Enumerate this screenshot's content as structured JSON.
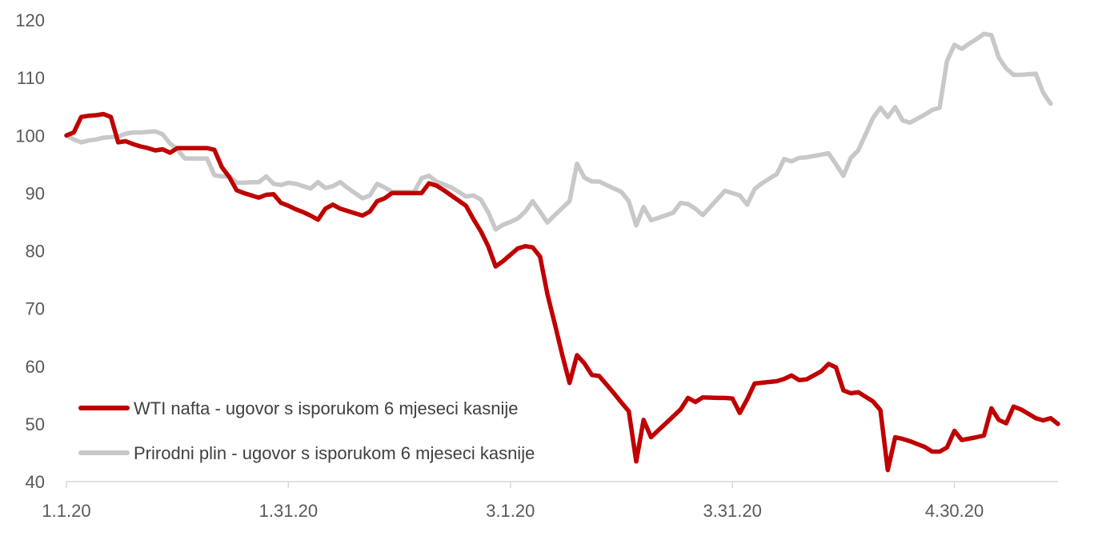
{
  "chart_data": {
    "type": "line",
    "ylim": [
      40,
      120
    ],
    "yticks": [
      40,
      50,
      60,
      70,
      80,
      90,
      100,
      110,
      120
    ],
    "xlim": [
      0,
      134
    ],
    "xticks": [
      {
        "x": 0,
        "label": "1.1.20"
      },
      {
        "x": 30,
        "label": "1.31.20"
      },
      {
        "x": 60,
        "label": "3.1.20"
      },
      {
        "x": 90,
        "label": "3.31.20"
      },
      {
        "x": 120,
        "label": "4.30.20"
      }
    ],
    "legend_position": "bottom-left",
    "grid": false,
    "series": [
      {
        "name": "WTI nafta - ugovor s isporukom 6 mjeseci kasnije",
        "color": "#C00000",
        "points": [
          [
            0,
            100
          ],
          [
            1,
            100.5
          ],
          [
            2,
            103.2
          ],
          [
            3,
            103.4
          ],
          [
            4,
            103.5
          ],
          [
            5,
            103.7
          ],
          [
            6,
            103.2
          ],
          [
            7,
            98.8
          ],
          [
            8,
            99
          ],
          [
            9,
            98.5
          ],
          [
            10,
            98.1
          ],
          [
            11,
            97.8
          ],
          [
            12,
            97.4
          ],
          [
            13,
            97.6
          ],
          [
            14,
            97
          ],
          [
            15,
            97.8
          ],
          [
            16,
            97.8
          ],
          [
            17,
            97.8
          ],
          [
            18,
            97.8
          ],
          [
            19,
            97.8
          ],
          [
            20,
            97.5
          ],
          [
            21,
            94.5
          ],
          [
            22,
            92.8
          ],
          [
            23,
            90.5
          ],
          [
            24,
            90
          ],
          [
            25,
            89.6
          ],
          [
            26,
            89.2
          ],
          [
            27,
            89.7
          ],
          [
            28,
            89.8
          ],
          [
            29,
            88.3
          ],
          [
            30,
            87.8
          ],
          [
            31,
            87.2
          ],
          [
            32,
            86.7
          ],
          [
            33,
            86.1
          ],
          [
            34,
            85.4
          ],
          [
            35,
            87.3
          ],
          [
            36,
            88
          ],
          [
            37,
            87.3
          ],
          [
            38,
            86.9
          ],
          [
            39,
            86.5
          ],
          [
            40,
            86.1
          ],
          [
            41,
            86.8
          ],
          [
            42,
            88.6
          ],
          [
            43,
            89.1
          ],
          [
            44,
            90
          ],
          [
            45,
            90
          ],
          [
            46,
            90
          ],
          [
            47,
            90
          ],
          [
            48,
            90
          ],
          [
            49,
            91.7
          ],
          [
            50,
            91.3
          ],
          [
            51,
            90.5
          ],
          [
            52,
            89.6
          ],
          [
            53,
            88.7
          ],
          [
            54,
            87.8
          ],
          [
            55,
            85.5
          ],
          [
            56,
            83.4
          ],
          [
            57,
            80.8
          ],
          [
            58,
            77.3
          ],
          [
            59,
            78.2
          ],
          [
            60,
            79.3
          ],
          [
            61,
            80.4
          ],
          [
            62,
            80.8
          ],
          [
            63,
            80.6
          ],
          [
            64,
            79
          ],
          [
            65,
            72.5
          ],
          [
            66,
            67.3
          ],
          [
            67,
            62
          ],
          [
            68,
            57.1
          ],
          [
            69,
            61.9
          ],
          [
            70,
            60.5
          ],
          [
            71,
            58.5
          ],
          [
            72,
            58.3
          ],
          [
            73,
            56.8
          ],
          [
            74,
            55.3
          ],
          [
            75,
            53.7
          ],
          [
            76,
            52.2
          ],
          [
            77,
            43.5
          ],
          [
            78,
            50.7
          ],
          [
            79,
            47.7
          ],
          [
            80,
            48.9
          ],
          [
            81,
            50.1
          ],
          [
            82,
            51.3
          ],
          [
            83,
            52.5
          ],
          [
            84,
            54.5
          ],
          [
            85,
            53.8
          ],
          [
            86,
            54.6
          ],
          [
            88,
            54.5
          ],
          [
            89,
            54.5
          ],
          [
            90,
            54.4
          ],
          [
            91,
            51.9
          ],
          [
            92,
            54.3
          ],
          [
            93,
            57
          ],
          [
            96,
            57.4
          ],
          [
            97,
            57.8
          ],
          [
            98,
            58.4
          ],
          [
            99,
            57.6
          ],
          [
            100,
            57.7
          ],
          [
            102,
            59.1
          ],
          [
            103,
            60.4
          ],
          [
            104,
            59.8
          ],
          [
            105,
            55.8
          ],
          [
            106,
            55.3
          ],
          [
            107,
            55.5
          ],
          [
            109,
            53.9
          ],
          [
            110,
            52.4
          ],
          [
            111,
            42
          ],
          [
            112,
            47.7
          ],
          [
            113,
            47.4
          ],
          [
            114,
            47
          ],
          [
            116,
            46
          ],
          [
            117,
            45.2
          ],
          [
            118,
            45.2
          ],
          [
            119,
            45.9
          ],
          [
            120,
            48.8
          ],
          [
            121,
            47.2
          ],
          [
            123,
            47.7
          ],
          [
            124,
            48
          ],
          [
            125,
            52.7
          ],
          [
            126,
            50.7
          ],
          [
            127,
            50.1
          ],
          [
            128,
            53
          ],
          [
            129,
            52.5
          ],
          [
            131,
            51
          ],
          [
            132,
            50.6
          ],
          [
            133,
            51
          ],
          [
            134,
            50
          ]
        ]
      },
      {
        "name": "Prirodni plin - ugovor s isporukom 6 mjeseci kasnije",
        "color": "#C8C8C8",
        "points": [
          [
            0,
            100
          ],
          [
            1,
            99.3
          ],
          [
            2,
            98.8
          ],
          [
            3,
            99.1
          ],
          [
            4,
            99.3
          ],
          [
            5,
            99.6
          ],
          [
            6,
            99.7
          ],
          [
            7,
            99.8
          ],
          [
            8,
            100.3
          ],
          [
            9,
            100.5
          ],
          [
            10,
            100.5
          ],
          [
            11,
            100.6
          ],
          [
            12,
            100.7
          ],
          [
            13,
            100.2
          ],
          [
            14,
            98.6
          ],
          [
            15,
            97.6
          ],
          [
            16,
            96
          ],
          [
            17,
            96
          ],
          [
            18,
            96
          ],
          [
            19,
            96
          ],
          [
            20,
            93.1
          ],
          [
            21,
            92.9
          ],
          [
            22,
            92.9
          ],
          [
            23,
            91.8
          ],
          [
            24,
            91.8
          ],
          [
            25,
            91.9
          ],
          [
            26,
            91.9
          ],
          [
            27,
            92.9
          ],
          [
            28,
            91.6
          ],
          [
            29,
            91.4
          ],
          [
            30,
            91.8
          ],
          [
            31,
            91.6
          ],
          [
            32,
            91.2
          ],
          [
            33,
            90.8
          ],
          [
            34,
            91.9
          ],
          [
            35,
            90.9
          ],
          [
            36,
            91.2
          ],
          [
            37,
            91.9
          ],
          [
            38,
            90.9
          ],
          [
            39,
            90
          ],
          [
            40,
            89.1
          ],
          [
            41,
            89.6
          ],
          [
            42,
            91.6
          ],
          [
            43,
            91
          ],
          [
            44,
            90.2
          ],
          [
            45,
            90.2
          ],
          [
            46,
            90.2
          ],
          [
            47,
            90.2
          ],
          [
            48,
            92.6
          ],
          [
            49,
            93
          ],
          [
            50,
            92
          ],
          [
            51,
            91.5
          ],
          [
            52,
            91
          ],
          [
            53,
            90.2
          ],
          [
            54,
            89.4
          ],
          [
            55,
            89.6
          ],
          [
            56,
            88.9
          ],
          [
            57,
            86.7
          ],
          [
            58,
            83.7
          ],
          [
            59,
            84.5
          ],
          [
            60,
            85
          ],
          [
            61,
            85.6
          ],
          [
            62,
            86.8
          ],
          [
            63,
            88.6
          ],
          [
            64,
            86.8
          ],
          [
            65,
            84.9
          ],
          [
            66,
            86.2
          ],
          [
            67,
            87.4
          ],
          [
            68,
            88.6
          ],
          [
            69,
            95.1
          ],
          [
            70,
            92.7
          ],
          [
            71,
            92
          ],
          [
            72,
            92
          ],
          [
            73,
            91.4
          ],
          [
            74,
            90.8
          ],
          [
            75,
            90.2
          ],
          [
            76,
            88.6
          ],
          [
            77,
            84.4
          ],
          [
            78,
            87.6
          ],
          [
            79,
            85.3
          ],
          [
            80,
            85.7
          ],
          [
            82,
            86.6
          ],
          [
            83,
            88.3
          ],
          [
            84,
            88.1
          ],
          [
            85,
            87.3
          ],
          [
            86,
            86.2
          ],
          [
            87,
            87.6
          ],
          [
            88,
            89
          ],
          [
            89,
            90.4
          ],
          [
            90,
            90
          ],
          [
            91,
            89.6
          ],
          [
            92,
            88
          ],
          [
            93,
            90.7
          ],
          [
            94,
            91.7
          ],
          [
            95,
            92.5
          ],
          [
            96,
            93.3
          ],
          [
            97,
            95.9
          ],
          [
            98,
            95.5
          ],
          [
            99,
            96.1
          ],
          [
            100,
            96.2
          ],
          [
            103,
            96.9
          ],
          [
            104,
            95
          ],
          [
            105,
            93
          ],
          [
            106,
            96.1
          ],
          [
            107,
            97.4
          ],
          [
            108,
            100.2
          ],
          [
            109,
            103
          ],
          [
            110,
            104.8
          ],
          [
            111,
            103.2
          ],
          [
            112,
            104.9
          ],
          [
            113,
            102.6
          ],
          [
            114,
            102.2
          ],
          [
            115,
            102.9
          ],
          [
            116,
            103.6
          ],
          [
            117,
            104.4
          ],
          [
            118,
            104.8
          ],
          [
            119,
            112.9
          ],
          [
            120,
            115.7
          ],
          [
            121,
            115
          ],
          [
            122,
            115.9
          ],
          [
            123,
            116.7
          ],
          [
            124,
            117.6
          ],
          [
            125,
            117.4
          ],
          [
            126,
            113.5
          ],
          [
            127,
            111.6
          ],
          [
            128,
            110.5
          ],
          [
            129,
            110.5
          ],
          [
            130,
            110.6
          ],
          [
            131,
            110.7
          ],
          [
            132,
            107.4
          ],
          [
            133,
            105.5
          ]
        ]
      }
    ]
  }
}
